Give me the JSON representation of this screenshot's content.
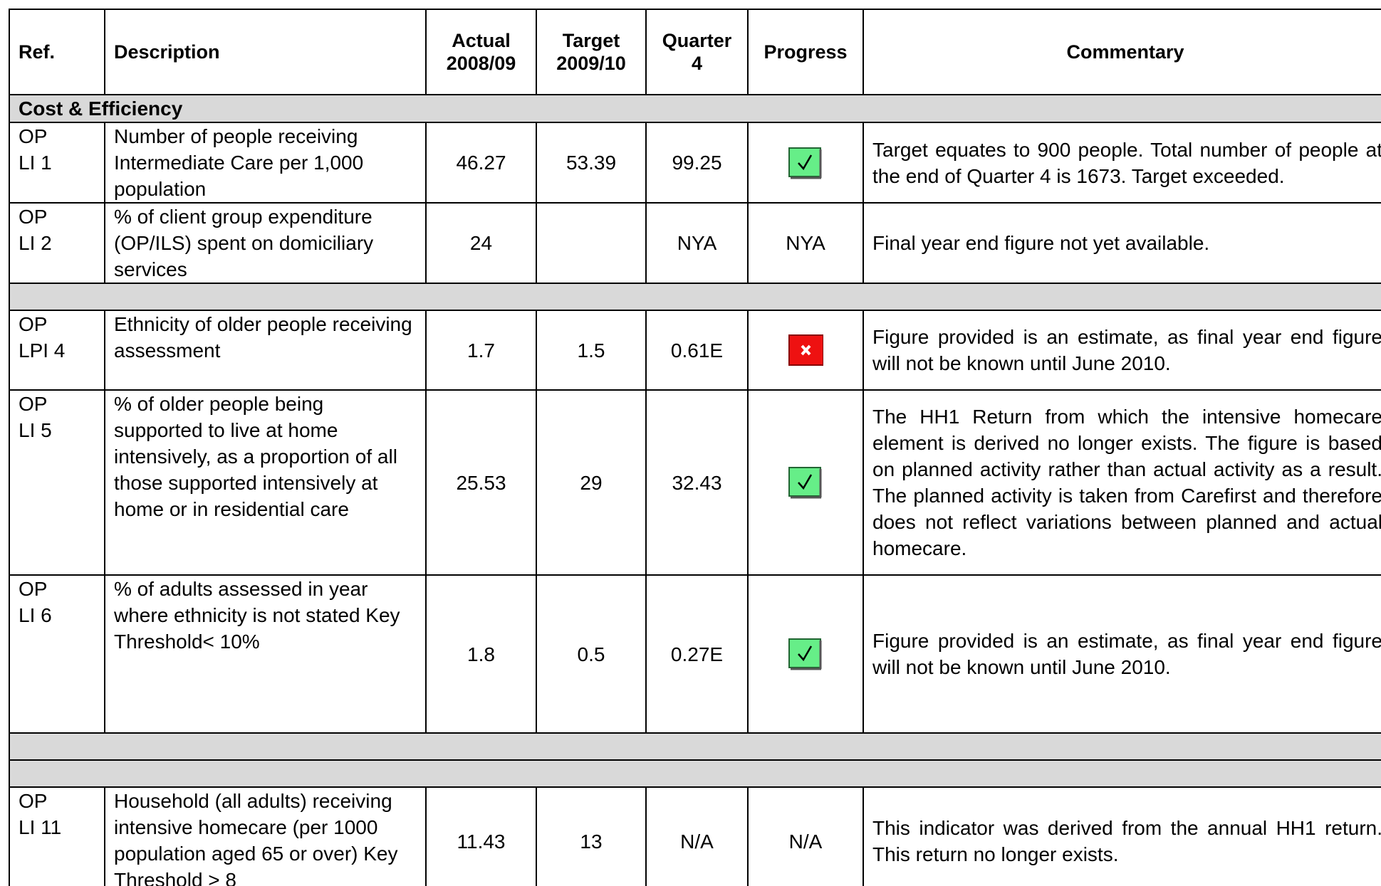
{
  "header": [
    "Ref.",
    "Description",
    "Actual 2008/09",
    "Target 2009/10",
    "Quarter 4",
    "Progress",
    "Commentary"
  ],
  "sections": [
    {
      "title": "Cost & Efficiency",
      "rows": [
        {
          "ref": "OP\nLI 1",
          "description": "Number of people receiving Intermediate Care per 1,000 population",
          "actual": "46.27",
          "target": "53.39",
          "quarter4": "99.25",
          "progress_icon": "tick",
          "commentary": "Target equates to 900 people.  Total number of people at the end of Quarter 4 is 1673.  Target exceeded."
        },
        {
          "ref": "OP\nLI 2",
          "description": "% of client group expenditure (OP/ILS) spent on domiciliary services",
          "actual": "24",
          "quarter4": "NYA",
          "progress": "NYA",
          "commentary": "Final year end figure not yet available."
        }
      ]
    },
    {
      "rows": [
        {
          "ref": "OP\nLPI 4",
          "description": "Ethnicity of older people receiving assessment",
          "actual": "1.7",
          "target": "1.5",
          "quarter4": "0.61E",
          "progress_icon": "cross",
          "commentary": "Figure provided is an estimate, as final year end figure will not be known until June 2010."
        },
        {
          "ref": "OP\nLI 5",
          "description": "% of older people being supported to live at home intensively, as a proportion of all those supported intensively at home or in residential care",
          "actual": "25.53",
          "target": "29",
          "quarter4": "32.43",
          "progress_icon": "tick",
          "commentary": "The HH1 Return from which the intensive homecare element is derived no longer exists. The figure is based on planned activity rather than actual activity as a result.  The planned activity is taken from Carefirst and therefore does not reflect variations between planned and actual homecare."
        },
        {
          "ref": "OP\nLI 6",
          "description": "% of adults assessed in year where ethnicity is not stated Key Threshold< 10%",
          "actual": "1.8",
          "target": "0.5",
          "quarter4": "0.27E",
          "progress_icon": "tick",
          "commentary": "Figure provided is an estimate, as final year end figure will not be known until June 2010."
        }
      ]
    },
    {
      "rows": []
    },
    {
      "rows": [
        {
          "ref": "OP\nLI 11",
          "description": "Household (all adults) receiving intensive homecare (per 1000 population aged 65 or over) Key Threshold > 8",
          "actual": "11.43",
          "target": "13",
          "quarter4": "N/A",
          "progress": "N/A",
          "commentary": "This indicator was derived from the annual HH1 return.  This return no longer exists."
        }
      ]
    }
  ]
}
